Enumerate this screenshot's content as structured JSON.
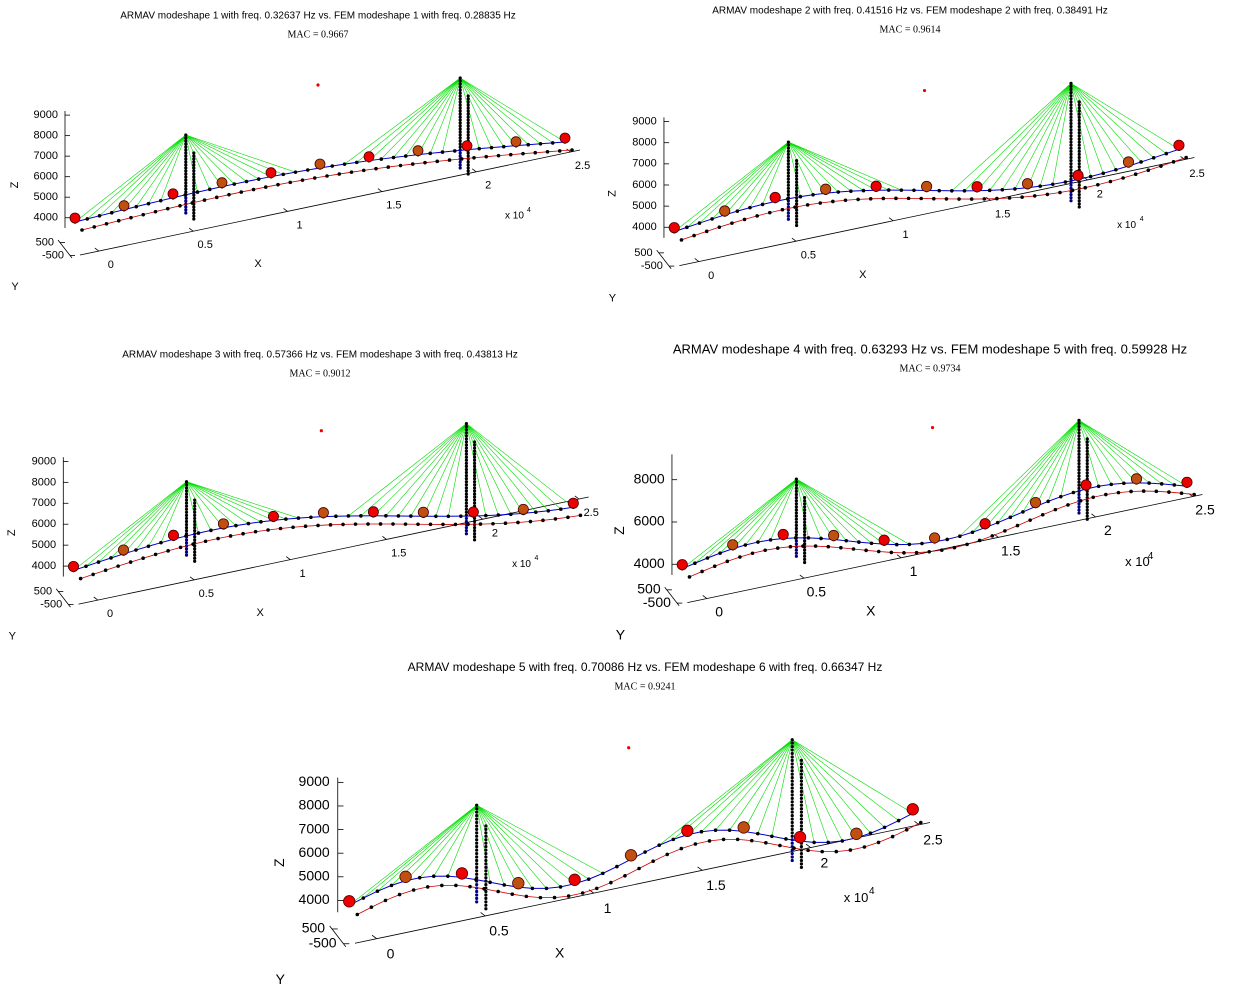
{
  "panels": [
    {
      "title": "ARMAV modeshape 1 with freq. 0.32637 Hz vs. FEM modeshape 1 with freq. 0.28835 Hz",
      "mac": "MAC = 0.9667",
      "x_label": "X",
      "y_label": "Y",
      "z_label": "Z",
      "x_multiplier": "x 10",
      "x_exponent": "4",
      "xlim": [
        -0.1,
        2.55
      ],
      "xticks": [
        0,
        0.5,
        1,
        1.5,
        2,
        2.5
      ],
      "ylim": [
        -700,
        700
      ],
      "yticks": [
        -500,
        500
      ],
      "zlim": [
        3500,
        9200
      ],
      "zticks": [
        4000,
        5000,
        6000,
        7000,
        8000,
        9000
      ]
    },
    {
      "title": "ARMAV modeshape 2 with freq. 0.41516 Hz vs. FEM modeshape 2 with freq. 0.38491 Hz",
      "mac": "MAC = 0.9614",
      "x_label": "X",
      "y_label": "Y",
      "z_label": "Z",
      "x_multiplier": "x 10",
      "x_exponent": "4",
      "xlim": [
        -0.1,
        2.55
      ],
      "xticks": [
        0,
        0.5,
        1,
        1.5,
        2,
        2.5
      ],
      "ylim": [
        -700,
        700
      ],
      "yticks": [
        -500,
        500
      ],
      "zlim": [
        3500,
        9200
      ],
      "zticks": [
        4000,
        5000,
        6000,
        7000,
        8000,
        9000
      ]
    },
    {
      "title": "ARMAV modeshape 3 with freq. 0.57366 Hz vs. FEM modeshape 3 with freq. 0.43813 Hz",
      "mac": "MAC = 0.9012",
      "x_label": "X",
      "y_label": "Y",
      "z_label": "Z",
      "x_multiplier": "x 10",
      "x_exponent": "4",
      "xlim": [
        -0.1,
        2.55
      ],
      "xticks": [
        0,
        0.5,
        1,
        1.5,
        2,
        2.5
      ],
      "ylim": [
        -700,
        700
      ],
      "yticks": [
        -500,
        500
      ],
      "zlim": [
        3500,
        9200
      ],
      "zticks": [
        4000,
        5000,
        6000,
        7000,
        8000,
        9000
      ]
    },
    {
      "title": "ARMAV modeshape 4 with freq. 0.63293 Hz vs. FEM modeshape 5 with freq. 0.59928 Hz",
      "mac": "MAC = 0.9734",
      "x_label": "X",
      "y_label": "Y",
      "z_label": "Z",
      "x_multiplier": "x 10",
      "x_exponent": "4",
      "xlim": [
        -0.1,
        2.55
      ],
      "xticks": [
        0,
        0.5,
        1,
        1.5,
        2,
        2.5
      ],
      "ylim": [
        -700,
        700
      ],
      "yticks": [
        -500,
        500
      ],
      "zlim": [
        3500,
        9200
      ],
      "zticks": [
        4000,
        6000,
        8000
      ]
    },
    {
      "title": "ARMAV modeshape 5 with freq. 0.70086 Hz vs. FEM modeshape 6 with freq. 0.66347 Hz",
      "mac": "MAC = 0.9241",
      "x_label": "X",
      "y_label": "Y",
      "z_label": "Z",
      "x_multiplier": "x 10",
      "x_exponent": "4",
      "xlim": [
        -0.1,
        2.55
      ],
      "xticks": [
        0,
        0.5,
        1,
        1.5,
        2,
        2.5
      ],
      "ylim": [
        -700,
        700
      ],
      "yticks": [
        -500,
        500
      ],
      "zlim": [
        3500,
        9200
      ],
      "zticks": [
        4000,
        5000,
        6000,
        7000,
        8000,
        9000
      ]
    }
  ]
}
